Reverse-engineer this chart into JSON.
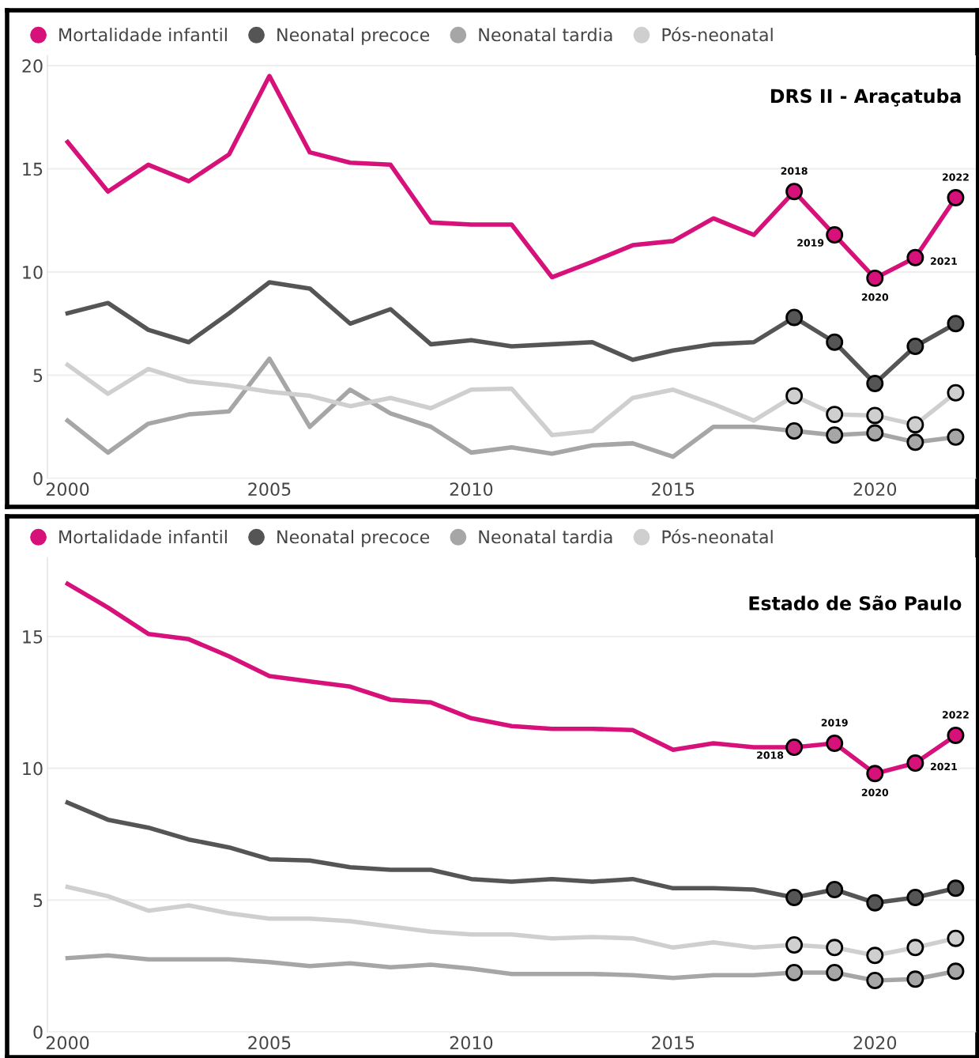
{
  "chart_data": [
    {
      "type": "line",
      "title": "DRS II - Araçatuba",
      "x": [
        2000,
        2001,
        2002,
        2003,
        2004,
        2005,
        2006,
        2007,
        2008,
        2009,
        2010,
        2011,
        2012,
        2013,
        2014,
        2015,
        2016,
        2017,
        2018,
        2019,
        2020,
        2021,
        2022
      ],
      "xlim": [
        1999.5,
        2022.5
      ],
      "xticks": [
        2000,
        2005,
        2010,
        2015,
        2020
      ],
      "ylim": [
        0,
        20.5
      ],
      "yticks": [
        0,
        5,
        10,
        15,
        20
      ],
      "grid": "y",
      "legend": "top left",
      "line_style": "solid",
      "series": [
        {
          "name": "Mortalidade infantil",
          "color": "#d6117a",
          "values": [
            16.3,
            13.9,
            15.2,
            14.4,
            15.7,
            19.5,
            15.8,
            15.3,
            15.2,
            12.4,
            12.3,
            12.3,
            9.75,
            10.5,
            11.3,
            11.5,
            12.6,
            11.8,
            13.9,
            11.8,
            9.7,
            10.7,
            13.6
          ]
        },
        {
          "name": "Neonatal precoce",
          "color": "#555555",
          "values": [
            8.0,
            8.5,
            7.2,
            6.6,
            8.0,
            9.5,
            9.2,
            7.5,
            8.2,
            6.5,
            6.7,
            6.4,
            6.5,
            6.6,
            5.75,
            6.2,
            6.5,
            6.6,
            7.8,
            6.6,
            4.6,
            6.4,
            7.5
          ]
        },
        {
          "name": "Neonatal tardia",
          "color": "#a6a6a6",
          "values": [
            2.8,
            1.25,
            2.65,
            3.1,
            3.25,
            5.8,
            2.5,
            4.3,
            3.15,
            2.5,
            1.25,
            1.5,
            1.2,
            1.6,
            1.7,
            1.05,
            2.5,
            2.5,
            2.3,
            2.1,
            2.2,
            1.75,
            2.0
          ]
        },
        {
          "name": "Pós-neonatal",
          "color": "#cfcfcf",
          "values": [
            5.5,
            4.1,
            5.3,
            4.7,
            4.5,
            4.2,
            4.0,
            3.5,
            3.9,
            3.4,
            4.3,
            4.35,
            2.1,
            2.3,
            3.9,
            4.3,
            3.6,
            2.8,
            4.0,
            3.1,
            3.05,
            2.6,
            4.15
          ]
        },
        {
          "type": "scatter",
          "marker": "circle",
          "color": "#d6117a",
          "x": [
            2018,
            2019,
            2020,
            2021,
            2022
          ],
          "values": [
            13.9,
            11.8,
            9.7,
            10.7,
            13.6
          ]
        },
        {
          "type": "scatter",
          "marker": "circle",
          "color": "#555555",
          "x": [
            2018,
            2019,
            2020,
            2021,
            2022
          ],
          "values": [
            7.8,
            6.6,
            4.6,
            6.4,
            7.5
          ]
        },
        {
          "type": "scatter",
          "marker": "circle",
          "color": "#a6a6a6",
          "x": [
            2018,
            2019,
            2020,
            2021,
            2022
          ],
          "values": [
            2.3,
            2.1,
            2.2,
            1.75,
            2.0
          ]
        },
        {
          "type": "scatter",
          "marker": "circle",
          "color": "#cfcfcf",
          "x": [
            2018,
            2019,
            2020,
            2021,
            2022
          ],
          "values": [
            4.0,
            3.1,
            3.05,
            2.6,
            4.15
          ]
        }
      ],
      "annotations": [
        {
          "text": "2018",
          "x": 2018,
          "y": 13.9
        },
        {
          "text": "2019",
          "x": 2019,
          "y": 11.8
        },
        {
          "text": "2020",
          "x": 2020,
          "y": 9.7
        },
        {
          "text": "2021",
          "x": 2021,
          "y": 10.7
        },
        {
          "text": "2022",
          "x": 2022,
          "y": 13.6
        }
      ]
    },
    {
      "type": "line",
      "title": "Estado de São Paulo",
      "x": [
        2000,
        2001,
        2002,
        2003,
        2004,
        2005,
        2006,
        2007,
        2008,
        2009,
        2010,
        2011,
        2012,
        2013,
        2014,
        2015,
        2016,
        2017,
        2018,
        2019,
        2020,
        2021,
        2022
      ],
      "xlim": [
        1999.5,
        2022.5
      ],
      "xticks": [
        2000,
        2005,
        2010,
        2015,
        2020
      ],
      "ylim": [
        0,
        18
      ],
      "yticks": [
        0,
        5,
        10,
        15
      ],
      "grid": "y",
      "legend": "top left",
      "line_style": "solid",
      "series": [
        {
          "name": "Mortalidade infantil",
          "color": "#d6117a",
          "values": [
            17.0,
            16.1,
            15.1,
            14.9,
            14.25,
            13.5,
            13.3,
            13.1,
            12.6,
            12.5,
            11.9,
            11.6,
            11.5,
            11.5,
            11.45,
            10.7,
            10.95,
            10.8,
            10.8,
            10.95,
            9.8,
            10.2,
            11.25
          ]
        },
        {
          "name": "Neonatal precoce",
          "color": "#555555",
          "values": [
            8.7,
            8.05,
            7.75,
            7.3,
            7.0,
            6.55,
            6.5,
            6.25,
            6.15,
            6.15,
            5.8,
            5.7,
            5.8,
            5.7,
            5.8,
            5.45,
            5.45,
            5.4,
            5.1,
            5.4,
            4.9,
            5.1,
            5.45
          ]
        },
        {
          "name": "Neonatal tardia",
          "color": "#a6a6a6",
          "values": [
            2.8,
            2.9,
            2.75,
            2.75,
            2.75,
            2.65,
            2.5,
            2.6,
            2.45,
            2.55,
            2.4,
            2.2,
            2.2,
            2.2,
            2.15,
            2.05,
            2.15,
            2.15,
            2.25,
            2.25,
            1.95,
            2.0,
            2.3
          ]
        },
        {
          "name": "Pós-neonatal",
          "color": "#cfcfcf",
          "values": [
            5.5,
            5.15,
            4.6,
            4.8,
            4.5,
            4.3,
            4.3,
            4.2,
            4.0,
            3.8,
            3.7,
            3.7,
            3.55,
            3.6,
            3.55,
            3.2,
            3.4,
            3.2,
            3.3,
            3.2,
            2.9,
            3.2,
            3.55
          ]
        },
        {
          "type": "scatter",
          "marker": "circle",
          "color": "#d6117a",
          "x": [
            2018,
            2019,
            2020,
            2021,
            2022
          ],
          "values": [
            10.8,
            10.95,
            9.8,
            10.2,
            11.25
          ]
        },
        {
          "type": "scatter",
          "marker": "circle",
          "color": "#555555",
          "x": [
            2018,
            2019,
            2020,
            2021,
            2022
          ],
          "values": [
            5.1,
            5.4,
            4.9,
            5.1,
            5.45
          ]
        },
        {
          "type": "scatter",
          "marker": "circle",
          "color": "#a6a6a6",
          "x": [
            2018,
            2019,
            2020,
            2021,
            2022
          ],
          "values": [
            2.25,
            2.25,
            1.95,
            2.0,
            2.3
          ]
        },
        {
          "type": "scatter",
          "marker": "circle",
          "color": "#cfcfcf",
          "x": [
            2018,
            2019,
            2020,
            2021,
            2022
          ],
          "values": [
            3.3,
            3.2,
            2.9,
            3.2,
            3.55
          ]
        }
      ],
      "annotations": [
        {
          "text": "2018",
          "x": 2018,
          "y": 10.8
        },
        {
          "text": "2019",
          "x": 2019,
          "y": 10.95
        },
        {
          "text": "2020",
          "x": 2020,
          "y": 9.8
        },
        {
          "text": "2021",
          "x": 2021,
          "y": 10.2
        },
        {
          "text": "2022",
          "x": 2022,
          "y": 11.25
        }
      ]
    }
  ]
}
